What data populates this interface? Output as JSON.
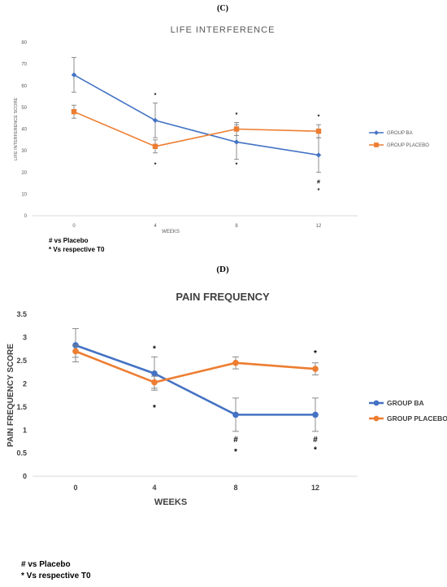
{
  "panels": [
    {
      "label": "(C)",
      "notes": [
        "# vs Placebo",
        "* Vs respective T0"
      ]
    },
    {
      "label": "(D)",
      "notes": [
        "# vs Placebo",
        "* Vs respective T0"
      ]
    }
  ],
  "chart_data": [
    {
      "type": "line",
      "title": "LIFE INTERFERENCE",
      "xlabel": "WEEKS",
      "ylabel": "LIFE INTERFERENCE SCORE",
      "categories": [
        "0",
        "4",
        "8",
        "12"
      ],
      "ylim": [
        0,
        80
      ],
      "yticks": [
        "0",
        "10",
        "20",
        "30",
        "40",
        "50",
        "60",
        "70",
        "80"
      ],
      "grid": false,
      "legend_position": "right",
      "series": [
        {
          "name": "GROUP BA",
          "color": "#4472c4",
          "marker": "diamond",
          "values": [
            65,
            44,
            34,
            28
          ],
          "error": [
            8,
            8,
            8,
            8
          ]
        },
        {
          "name": "GROUP PLACEBO",
          "color": "#ed7d31",
          "marker": "square",
          "values": [
            48,
            32,
            40,
            39
          ],
          "error": [
            3,
            3,
            3,
            3
          ]
        }
      ],
      "annotations": [
        {
          "x": "4",
          "y": 56,
          "text": "*"
        },
        {
          "x": "4",
          "y": 24,
          "text": "*"
        },
        {
          "x": "8",
          "y": 47,
          "text": "*"
        },
        {
          "x": "8",
          "y": 24,
          "text": "*"
        },
        {
          "x": "12",
          "y": 46,
          "text": "*"
        },
        {
          "x": "12",
          "y": 16,
          "text": "#"
        },
        {
          "x": "12",
          "y": 12,
          "text": "*"
        }
      ]
    },
    {
      "type": "line",
      "title": "PAIN FREQUENCY",
      "xlabel": "WEEKS",
      "ylabel": "PAIN FREQUENCY SCORE",
      "categories": [
        "0",
        "4",
        "8",
        "12"
      ],
      "ylim": [
        0,
        3.5
      ],
      "yticks": [
        "0",
        "0.5",
        "1",
        "1.5",
        "2",
        "2.5",
        "3",
        "3.5"
      ],
      "grid": false,
      "legend_position": "right",
      "series": [
        {
          "name": "GROUP BA",
          "color": "#4472c4",
          "marker": "circle",
          "values": [
            2.83,
            2.22,
            1.33,
            1.33
          ],
          "error": [
            0.36,
            0.36,
            0.36,
            0.36
          ]
        },
        {
          "name": "GROUP PLACEBO",
          "color": "#ed7d31",
          "marker": "circle",
          "values": [
            2.7,
            2.03,
            2.45,
            2.32
          ],
          "error": [
            0.13,
            0.13,
            0.13,
            0.13
          ]
        }
      ],
      "annotations": [
        {
          "x": "4",
          "y": 2.78,
          "text": "*"
        },
        {
          "x": "4",
          "y": 1.5,
          "text": "*"
        },
        {
          "x": "8",
          "y": 0.82,
          "text": "#"
        },
        {
          "x": "8",
          "y": 0.55,
          "text": "*"
        },
        {
          "x": "12",
          "y": 2.68,
          "text": "*"
        },
        {
          "x": "12",
          "y": 0.82,
          "text": "#"
        },
        {
          "x": "12",
          "y": 0.6,
          "text": "*"
        }
      ]
    }
  ]
}
